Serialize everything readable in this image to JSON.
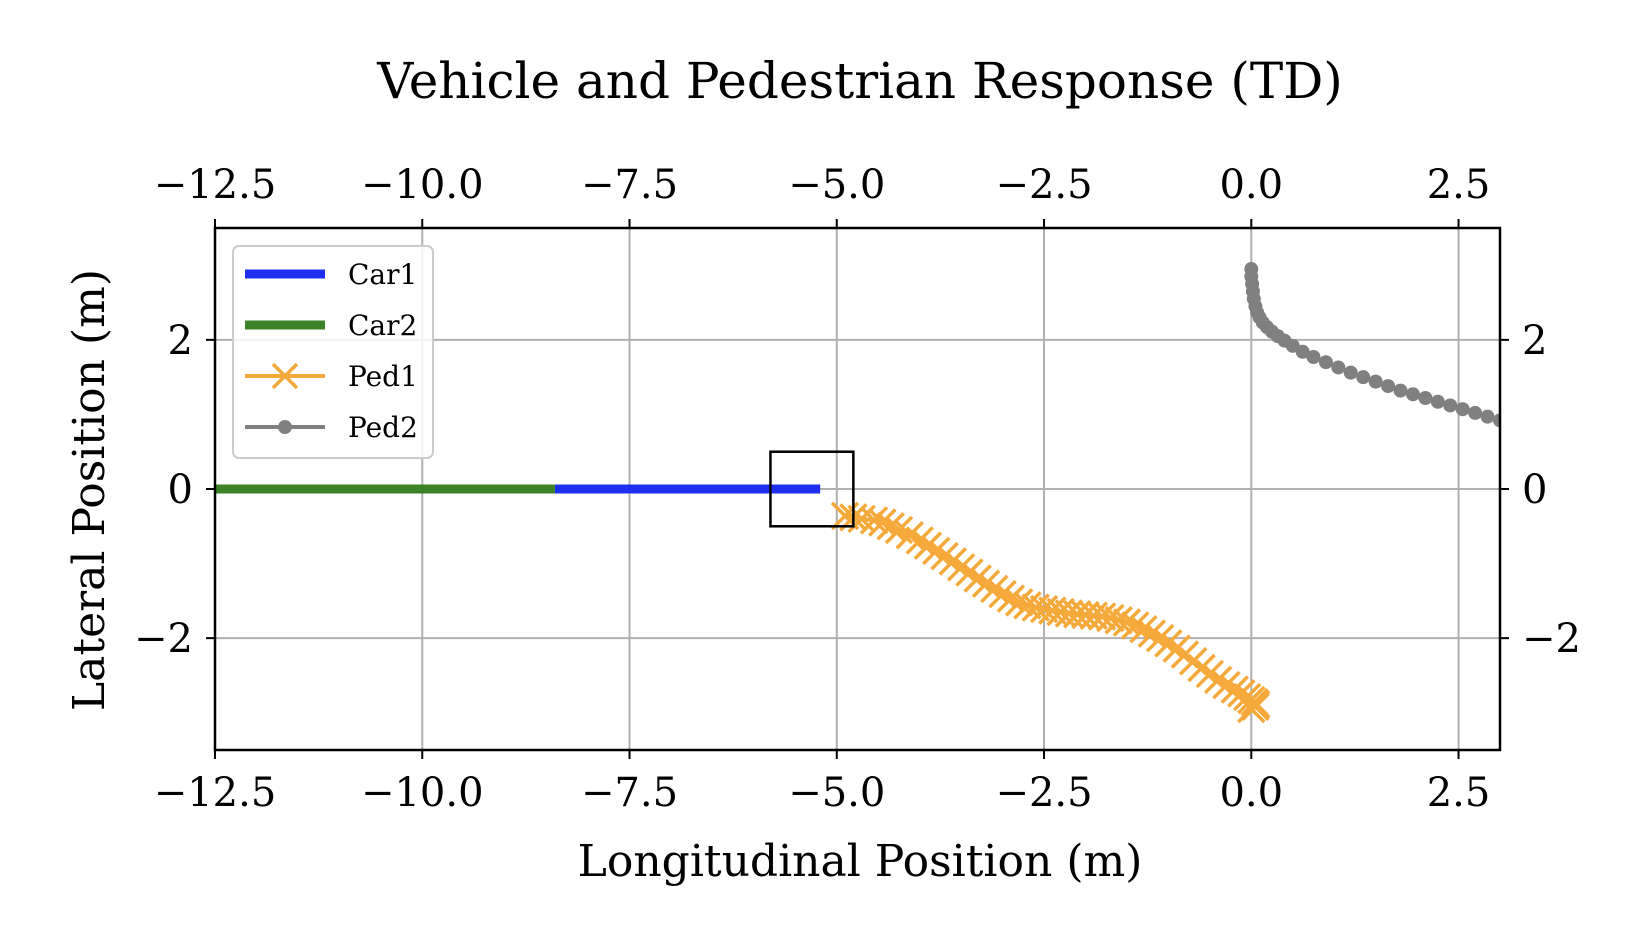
{
  "chart_data": {
    "type": "line",
    "title": "Vehicle and Pedestrian Response (TD)",
    "xlabel": "Longitudinal Position (m)",
    "ylabel": "Lateral Position (m)",
    "xlim": [
      -12.5,
      3.0
    ],
    "ylim": [
      -3.5,
      3.5
    ],
    "x_ticks": [
      -12.5,
      -10.0,
      -7.5,
      -5.0,
      -2.5,
      0.0,
      2.5
    ],
    "x_tick_labels": [
      "−12.5",
      "−10.0",
      "−7.5",
      "−5.0",
      "−2.5",
      "0.0",
      "2.5"
    ],
    "y_ticks": [
      -2,
      0,
      2
    ],
    "y_tick_labels": [
      "−2",
      "0",
      "2"
    ],
    "grid": true,
    "legend_position": "top-left",
    "highlight_box": {
      "x": [
        -5.8,
        -4.8
      ],
      "y": [
        -0.5,
        0.5
      ]
    },
    "series": [
      {
        "name": "Car1",
        "color": "#1f2ff0",
        "marker": "none",
        "x": [
          -8.4,
          -5.2
        ],
        "y": [
          0.0,
          0.0
        ]
      },
      {
        "name": "Car2",
        "color": "#3c8227",
        "marker": "none",
        "x": [
          -12.5,
          -8.4
        ],
        "y": [
          0.0,
          0.0
        ]
      },
      {
        "name": "Ped1",
        "color": "#f5a93a",
        "marker": "x",
        "x": [
          -4.9,
          -4.8,
          -4.7,
          -4.55,
          -4.45,
          -4.35,
          -4.25,
          -4.12,
          -4.0,
          -3.9,
          -3.8,
          -3.7,
          -3.6,
          -3.5,
          -3.4,
          -3.3,
          -3.2,
          -3.1,
          -3.0,
          -2.9,
          -2.8,
          -2.7,
          -2.6,
          -2.5,
          -2.4,
          -2.3,
          -2.2,
          -2.1,
          -2.0,
          -1.9,
          -1.8,
          -1.7,
          -1.6,
          -1.5,
          -1.4,
          -1.3,
          -1.2,
          -1.1,
          -1.0,
          -0.9,
          -0.8,
          -0.7,
          -0.6,
          -0.5,
          -0.4,
          -0.3,
          -0.2,
          -0.12,
          -0.05,
          0.0,
          0.04,
          0.06,
          0.05,
          0.0
        ],
        "y": [
          -0.36,
          -0.38,
          -0.4,
          -0.42,
          -0.45,
          -0.5,
          -0.55,
          -0.62,
          -0.69,
          -0.76,
          -0.83,
          -0.9,
          -0.97,
          -1.05,
          -1.12,
          -1.2,
          -1.27,
          -1.34,
          -1.41,
          -1.47,
          -1.52,
          -1.56,
          -1.59,
          -1.61,
          -1.63,
          -1.65,
          -1.67,
          -1.68,
          -1.69,
          -1.7,
          -1.71,
          -1.73,
          -1.76,
          -1.79,
          -1.83,
          -1.88,
          -1.94,
          -2.0,
          -2.07,
          -2.14,
          -2.22,
          -2.31,
          -2.4,
          -2.48,
          -2.56,
          -2.63,
          -2.69,
          -2.74,
          -2.79,
          -2.83,
          -2.86,
          -2.89,
          -2.92,
          -2.95
        ]
      },
      {
        "name": "Ped2",
        "color": "#808080",
        "marker": "o",
        "x": [
          0.0,
          0.0,
          0.01,
          0.02,
          0.03,
          0.05,
          0.07,
          0.1,
          0.14,
          0.19,
          0.25,
          0.32,
          0.4,
          0.5,
          0.62,
          0.75,
          0.9,
          1.05,
          1.2,
          1.35,
          1.5,
          1.65,
          1.8,
          1.95,
          2.1,
          2.25,
          2.4,
          2.55,
          2.7,
          2.85,
          3.0
        ],
        "y": [
          2.95,
          2.85,
          2.75,
          2.65,
          2.55,
          2.45,
          2.37,
          2.3,
          2.23,
          2.17,
          2.11,
          2.05,
          1.99,
          1.92,
          1.84,
          1.77,
          1.7,
          1.63,
          1.56,
          1.5,
          1.44,
          1.38,
          1.32,
          1.27,
          1.22,
          1.17,
          1.12,
          1.07,
          1.02,
          0.97,
          0.92
        ]
      }
    ]
  }
}
